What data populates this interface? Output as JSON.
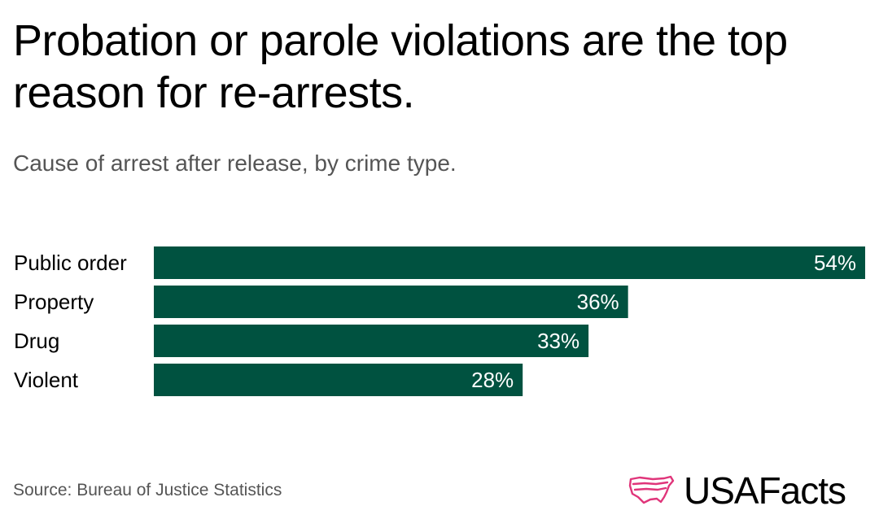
{
  "title": "Probation or parole violations are the top reason for re-arrests.",
  "subtitle": "Cause of arrest after release, by crime type.",
  "source": "Source: Bureau of Justice Statistics",
  "logo": {
    "text": "USAFacts",
    "icon": "us-map-outline-icon",
    "icon_color": "#e0357a"
  },
  "colors": {
    "bar": "#005240",
    "value_text": "#ffffff",
    "category_text": "#000000"
  },
  "chart_data": {
    "type": "bar",
    "orientation": "horizontal",
    "title": "Probation or parole violations are the top reason for re-arrests.",
    "subtitle": "Cause of arrest after release, by crime type.",
    "categories": [
      "Public order",
      "Property",
      "Drug",
      "Violent"
    ],
    "values": [
      54,
      36,
      33,
      28
    ],
    "labels": [
      "54%",
      "36%",
      "33%",
      "28%"
    ],
    "unit": "%",
    "xlim": [
      0,
      54
    ],
    "grid": false,
    "legend": "none"
  }
}
